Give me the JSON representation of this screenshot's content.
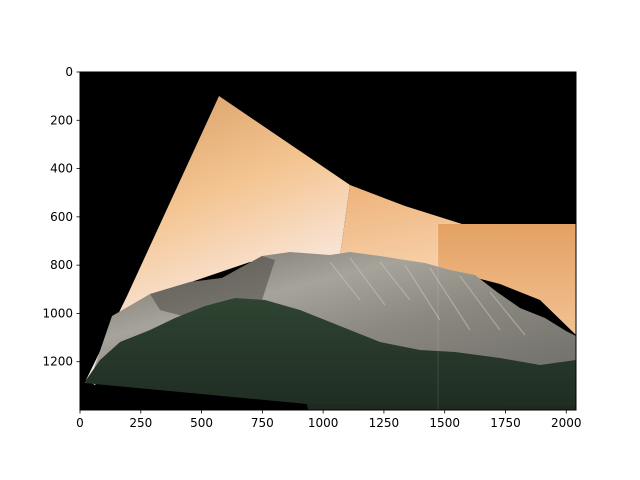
{
  "chart_data": {
    "type": "image",
    "title": "",
    "xlabel": "",
    "ylabel": "",
    "xlim": [
      0,
      2040
    ],
    "ylim": [
      1400,
      0
    ],
    "x_ticks": [
      "0",
      "250",
      "500",
      "750",
      "1000",
      "1250",
      "1500",
      "1750",
      "2000"
    ],
    "y_ticks": [
      "0",
      "200",
      "400",
      "600",
      "800",
      "1000",
      "1200"
    ],
    "x_tick_values": [
      0,
      250,
      500,
      750,
      1000,
      1250,
      1500,
      1750,
      2000
    ],
    "y_tick_values": [
      0,
      200,
      400,
      600,
      800,
      1000,
      1200
    ],
    "background_color": "#000000",
    "grid": false,
    "content": "stitched panorama of a granite cliff under an orange sky with dark forest below",
    "colors": {
      "sky_light": "#fbeee2",
      "sky_orange": "#e0a165",
      "rock_gray": "#8d8a82",
      "forest": "#2a3a2c"
    }
  }
}
